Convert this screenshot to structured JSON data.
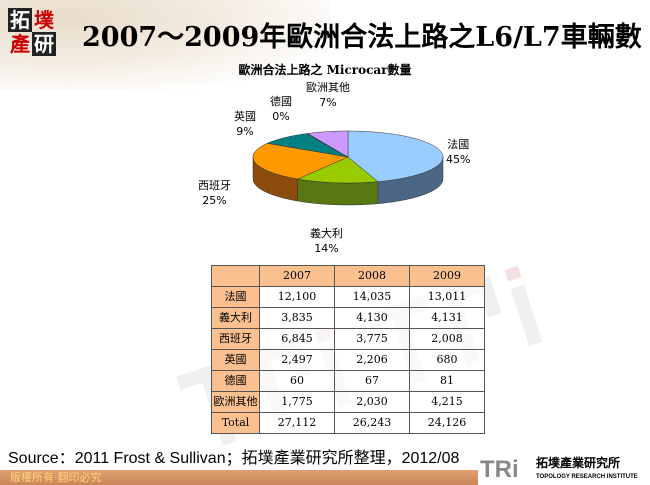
{
  "logo": {
    "chars": [
      "拓",
      "墣",
      "產",
      "研"
    ]
  },
  "title": "2007～2009年歐洲合法上路之L6/L7車輛數",
  "chart_data": [
    {
      "type": "pie",
      "title": "歐洲合法上路之 Microcar數量",
      "slices": [
        {
          "label": "法國",
          "value": 45,
          "pct": "45%",
          "color": "#99ccff",
          "side": "#4a6684"
        },
        {
          "label": "義大利",
          "value": 14,
          "pct": "14%",
          "color": "#99cc00",
          "side": "#5a7812"
        },
        {
          "label": "西班牙",
          "value": 25,
          "pct": "25%",
          "color": "#ff9900",
          "side": "#8a4b0c"
        },
        {
          "label": "英國",
          "value": 9,
          "pct": "9%",
          "color": "#008080",
          "side": "#004848"
        },
        {
          "label": "德國",
          "value": 0.2,
          "pct": "0%",
          "color": "#666699",
          "side": "#333355"
        },
        {
          "label": "歐洲其他",
          "value": 7,
          "pct": "7%",
          "color": "#cc99ff",
          "side": "#7a5a99"
        }
      ]
    },
    {
      "type": "table",
      "columns": [
        "",
        "2007",
        "2008",
        "2009"
      ],
      "rows": [
        [
          "法國",
          "12,100",
          "14,035",
          "13,011"
        ],
        [
          "義大利",
          "3,835",
          "4,130",
          "4,131"
        ],
        [
          "西班牙",
          "6,845",
          "3,775",
          "2,008"
        ],
        [
          "英國",
          "2,497",
          "2,206",
          "680"
        ],
        [
          "德國",
          "60",
          "67",
          "81"
        ],
        [
          "歐洲其他",
          "1,775",
          "2,030",
          "4,215"
        ],
        [
          "Total",
          "27,112",
          "26,243",
          "24,126"
        ]
      ]
    }
  ],
  "source": "Source：2011 Frost & Sullivan；拓墣產業研究所整理，2012/08",
  "copyright": "版權所有‧翻印必究",
  "footer_logo": {
    "mark": "TRi",
    "name": "拓墣產業研究所",
    "english": "TOPOLOGY RESEARCH INSTITUTE"
  }
}
